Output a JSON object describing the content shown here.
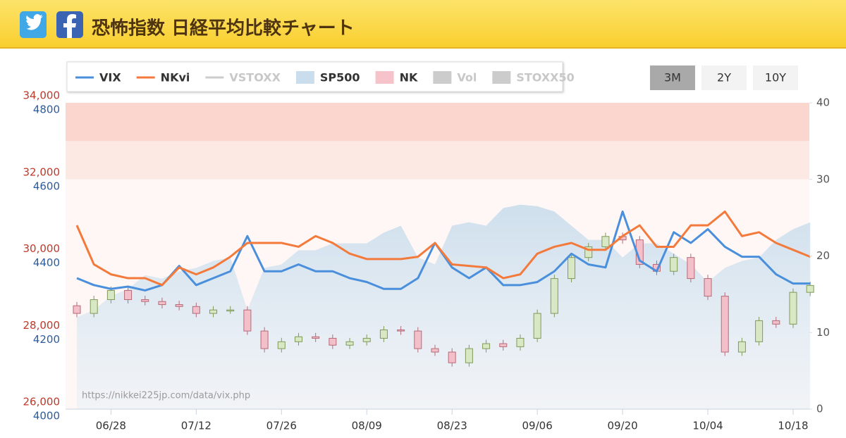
{
  "header": {
    "title": "恐怖指数 日経平均比較チャート"
  },
  "chart_data": {
    "type": "combo",
    "source": "https://nikkei225jp.com/data/vix.php",
    "range_buttons": [
      "3M",
      "2Y",
      "10Y"
    ],
    "selected_range": 0,
    "categories": [
      null,
      null,
      "06/28",
      null,
      null,
      null,
      null,
      "07/12",
      null,
      null,
      null,
      null,
      "07/26",
      null,
      null,
      null,
      null,
      "08/09",
      null,
      null,
      null,
      null,
      "08/23",
      null,
      null,
      null,
      null,
      "09/06",
      null,
      null,
      null,
      null,
      "09/20",
      null,
      null,
      null,
      null,
      "10/04",
      null,
      null,
      null,
      null,
      "10/18",
      null
    ],
    "ylim": [
      26000,
      34000
    ],
    "yticks": [
      {
        "value": 26000,
        "label": "26,000"
      },
      {
        "value": 28000,
        "label": "28,000"
      },
      {
        "value": 30000,
        "label": "30,000"
      },
      {
        "value": 32000,
        "label": "32,000"
      },
      {
        "value": 34000,
        "label": "34,000"
      }
    ],
    "y3lim": [
      4000,
      4800
    ],
    "y3ticks": [
      4000,
      4200,
      4400,
      4600,
      4800
    ],
    "y2lim": [
      0,
      40
    ],
    "y2ticks": [
      0,
      10,
      20,
      30,
      40
    ],
    "grid": false,
    "bands": [
      {
        "axis": "y2",
        "from": 0,
        "to": 30,
        "color": "#fff7f5"
      },
      {
        "axis": "y2",
        "from": 30,
        "to": 35,
        "color": "#fde9e4"
      },
      {
        "axis": "y2",
        "from": 35,
        "to": 40,
        "color": "#fbd6cf"
      }
    ],
    "series": [
      {
        "name": "VIX",
        "type": "line",
        "color": "#4a8fdc",
        "axis": "y2",
        "visible": true,
        "values": [
          17.1,
          16.2,
          15.7,
          16.0,
          15.5,
          16.2,
          18.7,
          16.2,
          17.1,
          18.0,
          22.6,
          18.0,
          18.0,
          18.9,
          18.0,
          18.0,
          17.1,
          16.6,
          15.7,
          15.7,
          17.1,
          21.7,
          18.5,
          17.1,
          18.5,
          16.2,
          16.2,
          16.6,
          18.0,
          20.3,
          18.9,
          18.5,
          25.8,
          19.4,
          18.0,
          23.1,
          21.7,
          23.5,
          21.2,
          19.9,
          19.9,
          17.6,
          16.4,
          16.4
        ]
      },
      {
        "name": "NKvi",
        "type": "line",
        "color": "#f47a3c",
        "axis": "y2",
        "visible": true,
        "values": [
          24.0,
          18.9,
          17.6,
          17.1,
          17.1,
          16.2,
          18.5,
          17.6,
          18.5,
          19.9,
          21.7,
          21.7,
          21.7,
          21.2,
          22.6,
          21.7,
          20.3,
          19.6,
          19.6,
          19.6,
          19.9,
          21.7,
          18.9,
          18.7,
          18.5,
          17.1,
          17.6,
          20.3,
          21.2,
          21.7,
          20.8,
          20.8,
          22.6,
          24.0,
          21.2,
          21.2,
          24.0,
          24.0,
          25.8,
          22.6,
          23.1,
          21.7,
          20.8,
          19.9
        ]
      },
      {
        "name": "VSTOXX",
        "type": "line",
        "color": "#cccccc",
        "visible": false
      },
      {
        "name": "SP500",
        "type": "area",
        "color": "#c9ddec",
        "axis": "y3",
        "visible": true,
        "values": [
          4240,
          4259,
          4295,
          4314,
          4350,
          4341,
          4360,
          4369,
          4387,
          4396,
          4259,
          4369,
          4378,
          4415,
          4415,
          4433,
          4433,
          4433,
          4461,
          4479,
          4396,
          4378,
          4479,
          4488,
          4479,
          4525,
          4534,
          4530,
          4516,
          4479,
          4442,
          4442,
          4396,
          4433,
          4433,
          4406,
          4378,
          4332,
          4369,
          4387,
          4396,
          4442,
          4470,
          4488
        ]
      },
      {
        "name": "NK",
        "type": "candlestick",
        "color": "#f7c3cb",
        "up_color": "#d9e8c4",
        "down_color": "#f3c0c9",
        "axis": "y",
        "visible": true,
        "open": [
          28700,
          28500,
          28860,
          29100,
          28860,
          28810,
          28730,
          28680,
          28500,
          28590,
          28590,
          28040,
          27580,
          27760,
          27890,
          27850,
          27670,
          27760,
          27850,
          28070,
          28040,
          27580,
          27490,
          27210,
          27580,
          27710,
          27630,
          27850,
          28500,
          29410,
          29960,
          30240,
          30510,
          30420,
          29780,
          29600,
          29960,
          29410,
          28950,
          27490,
          27760,
          28310,
          28220,
          29050
        ],
        "high": [
          28800,
          28960,
          29200,
          29200,
          28960,
          28910,
          28830,
          28780,
          28690,
          28690,
          28690,
          28140,
          27860,
          27990,
          27990,
          27950,
          27860,
          27950,
          28170,
          28170,
          28140,
          27680,
          27590,
          27680,
          27810,
          27810,
          27950,
          28600,
          29510,
          30060,
          30340,
          30610,
          30610,
          30520,
          29880,
          30060,
          30060,
          29510,
          29050,
          27860,
          28410,
          28410,
          29150,
          29330
        ],
        "low": [
          28400,
          28400,
          28760,
          28760,
          28710,
          28630,
          28580,
          28400,
          28400,
          28490,
          27940,
          27480,
          27480,
          27660,
          27750,
          27570,
          27570,
          27660,
          27750,
          27940,
          27480,
          27390,
          27110,
          27110,
          27480,
          27530,
          27530,
          27750,
          28400,
          29310,
          29860,
          30140,
          30320,
          29680,
          29500,
          29500,
          29310,
          28850,
          27390,
          27390,
          27660,
          28120,
          28120,
          28950
        ],
        "close": [
          28500,
          28860,
          29100,
          28860,
          28810,
          28730,
          28680,
          28500,
          28590,
          28590,
          28040,
          27580,
          27760,
          27890,
          27850,
          27670,
          27760,
          27850,
          28070,
          28040,
          27580,
          27490,
          27210,
          27580,
          27710,
          27630,
          27850,
          28500,
          29410,
          29960,
          30240,
          30510,
          30420,
          29780,
          29600,
          29960,
          29410,
          28950,
          27490,
          27760,
          28310,
          28220,
          29050,
          29230
        ]
      },
      {
        "name": "Vol",
        "type": "column",
        "color": "#cccccc",
        "visible": false
      },
      {
        "name": "STOXX50",
        "type": "area",
        "color": "#cccccc",
        "visible": false
      }
    ]
  }
}
